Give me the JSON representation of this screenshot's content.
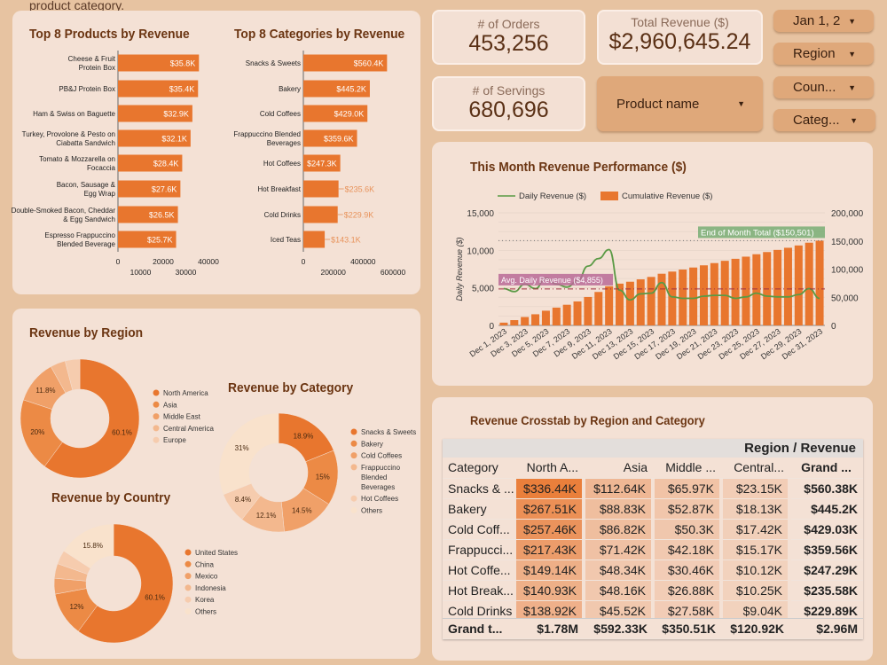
{
  "intro_text": "product category.",
  "kpis": {
    "orders_label": "# of Orders",
    "orders_value": "453,256",
    "revenue_label": "Total Revenue ($)",
    "revenue_value": "$2,960,645.24",
    "servings_label": "# of Servings",
    "servings_value": "680,696"
  },
  "filters": {
    "product": "Product name",
    "date": "Jan 1, 2",
    "region": "Region",
    "country": "Coun...",
    "category": "Categ..."
  },
  "colors": {
    "accent": "#e8762e",
    "title": "#6b3512",
    "line": "#5a9a45",
    "avg_label": "#b86a96",
    "eom_label": "#7fb07a",
    "shades": [
      "#e8762e",
      "#ec8a45",
      "#f0a068",
      "#f3b88e",
      "#f6ccae",
      "#f9e2cc"
    ]
  },
  "products_chart": {
    "title": "Top 8 Products by Revenue",
    "categories": [
      "Cheese & Fruit Protein Box",
      "PB&J Protein Box",
      "Ham & Swiss on Baguette",
      "Turkey, Provolone & Pesto on Ciabatta Sandwich",
      "Tomato & Mozzarella on Focaccia",
      "Bacon, Sausage & Egg Wrap",
      "Double-Smoked Bacon, Cheddar & Egg Sandwich",
      "Espresso Frappuccino Blended Beverage"
    ],
    "values": [
      35800,
      35400,
      32900,
      32100,
      28400,
      27600,
      26500,
      25700
    ],
    "labels": [
      "$35.8K",
      "$35.4K",
      "$32.9K",
      "$32.1K",
      "$28.4K",
      "$27.6K",
      "$26.5K",
      "$25.7K"
    ],
    "ticks": [
      "0",
      "10000",
      "20000",
      "30000",
      "40000"
    ],
    "xlim": [
      0,
      40000
    ]
  },
  "categories_chart": {
    "title": "Top 8 Categories by Revenue",
    "categories": [
      "Snacks & Sweets",
      "Bakery",
      "Cold Coffees",
      "Frappuccino Blended Beverages",
      "Hot Coffees",
      "Hot Breakfast",
      "Cold Drinks",
      "Iced Teas"
    ],
    "values": [
      560400,
      445200,
      429000,
      359600,
      247300,
      235600,
      229900,
      143100
    ],
    "labels": [
      "$560.4K",
      "$445.2K",
      "$429.0K",
      "$359.6K",
      "$247.3K",
      "$235.6K",
      "$229.9K",
      "$143.1K"
    ],
    "ticks": [
      "0",
      "200000",
      "400000",
      "600000"
    ],
    "xlim": [
      0,
      600000
    ]
  },
  "chart_data": [
    {
      "type": "pie",
      "title": "Revenue by Region",
      "labels": [
        "North America",
        "Asia",
        "Middle East",
        "Central America",
        "Europe"
      ],
      "values": [
        60.1,
        20,
        11.8,
        4.1,
        4.0
      ],
      "value_labels": [
        "60.1%",
        "20%",
        "11.8%",
        "",
        ""
      ]
    },
    {
      "type": "pie",
      "title": "Revenue by Category",
      "labels": [
        "Snacks & Sweets",
        "Bakery",
        "Cold Coffees",
        "Frappuccino Blended Beverages",
        "Hot Coffees",
        "Others"
      ],
      "values": [
        18.9,
        15,
        14.5,
        12.1,
        8.4,
        31
      ],
      "value_labels": [
        "18.9%",
        "15%",
        "14.5%",
        "12.1%",
        "8.4%",
        "31%"
      ]
    },
    {
      "type": "pie",
      "title": "Revenue by Country",
      "labels": [
        "United States",
        "China",
        "Mexico",
        "Indonesia",
        "Korea",
        "Others"
      ],
      "values": [
        60.1,
        12,
        4.3,
        4.0,
        3.8,
        15.8
      ],
      "value_labels": [
        "60.1%",
        "12%",
        "",
        "",
        "",
        "15.8%"
      ]
    },
    {
      "type": "bar+line",
      "title": "This Month Revenue Performance ($)",
      "ylabel": "Daily Revenue ($)",
      "ylim": [
        0,
        15000
      ],
      "y2lim": [
        0,
        200000
      ],
      "yticks": [
        "0",
        "5,000",
        "10,000",
        "15,000"
      ],
      "y2ticks": [
        "0",
        "50,000",
        "100,000",
        "150,000",
        "200,000"
      ],
      "x": [
        "Dec 1, 2023",
        "Dec 2, 2023",
        "Dec 3, 2023",
        "Dec 4, 2023",
        "Dec 5, 2023",
        "Dec 6, 2023",
        "Dec 7, 2023",
        "Dec 8, 2023",
        "Dec 9, 2023",
        "Dec 10, 2023",
        "Dec 11, 2023",
        "Dec 12, 2023",
        "Dec 13, 2023",
        "Dec 14, 2023",
        "Dec 15, 2023",
        "Dec 16, 2023",
        "Dec 17, 2023",
        "Dec 18, 2023",
        "Dec 19, 2023",
        "Dec 20, 2023",
        "Dec 21, 2023",
        "Dec 22, 2023",
        "Dec 23, 2023",
        "Dec 24, 2023",
        "Dec 25, 2023",
        "Dec 26, 2023",
        "Dec 27, 2023",
        "Dec 28, 2023",
        "Dec 29, 2023",
        "Dec 30, 2023",
        "Dec 31, 2023"
      ],
      "series": [
        {
          "name": "Daily Revenue ($)",
          "type": "line",
          "values": [
            4900,
            4500,
            5500,
            4900,
            6300,
            5500,
            5100,
            5900,
            7900,
            8900,
            10100,
            4700,
            3400,
            4200,
            4300,
            5700,
            3800,
            3600,
            3600,
            3900,
            4000,
            4000,
            3600,
            3800,
            4300,
            3900,
            3800,
            3800,
            4100,
            4900,
            3600
          ]
        },
        {
          "name": "Cumulative Revenue ($)",
          "type": "bar",
          "axis": "right"
        }
      ],
      "avg_label": "Avg. Daily Revenue ($4,855)",
      "avg_value": 4855,
      "eom_label": "End of Month Total ($150,501)",
      "eom_value": 150501
    }
  ],
  "crosstab": {
    "title": "Revenue Crosstab by Region and Category",
    "header": "Region / Revenue",
    "columns": [
      "Category",
      "North A...",
      "Asia",
      "Middle ...",
      "Central...",
      "Grand ..."
    ],
    "rows": [
      [
        "Snacks & ...",
        "$336.44K",
        "$112.64K",
        "$65.97K",
        "$23.15K",
        "$560.38K"
      ],
      [
        "Bakery",
        "$267.51K",
        "$88.83K",
        "$52.87K",
        "$18.13K",
        "$445.2K"
      ],
      [
        "Cold Coff...",
        "$257.46K",
        "$86.82K",
        "$50.3K",
        "$17.42K",
        "$429.03K"
      ],
      [
        "Frappucci...",
        "$217.43K",
        "$71.42K",
        "$42.18K",
        "$15.17K",
        "$359.56K"
      ],
      [
        "Hot Coffe...",
        "$149.14K",
        "$48.34K",
        "$30.46K",
        "$10.12K",
        "$247.29K"
      ],
      [
        "Hot Break...",
        "$140.93K",
        "$48.16K",
        "$26.88K",
        "$10.25K",
        "$235.58K"
      ],
      [
        "Cold Drinks",
        "$138.92K",
        "$45.52K",
        "$27.58K",
        "$9.04K",
        "$229.89K"
      ]
    ],
    "totals": [
      "Grand t...",
      "$1.78M",
      "$592.33K",
      "$350.51K",
      "$120.92K",
      "$2.96M"
    ]
  }
}
